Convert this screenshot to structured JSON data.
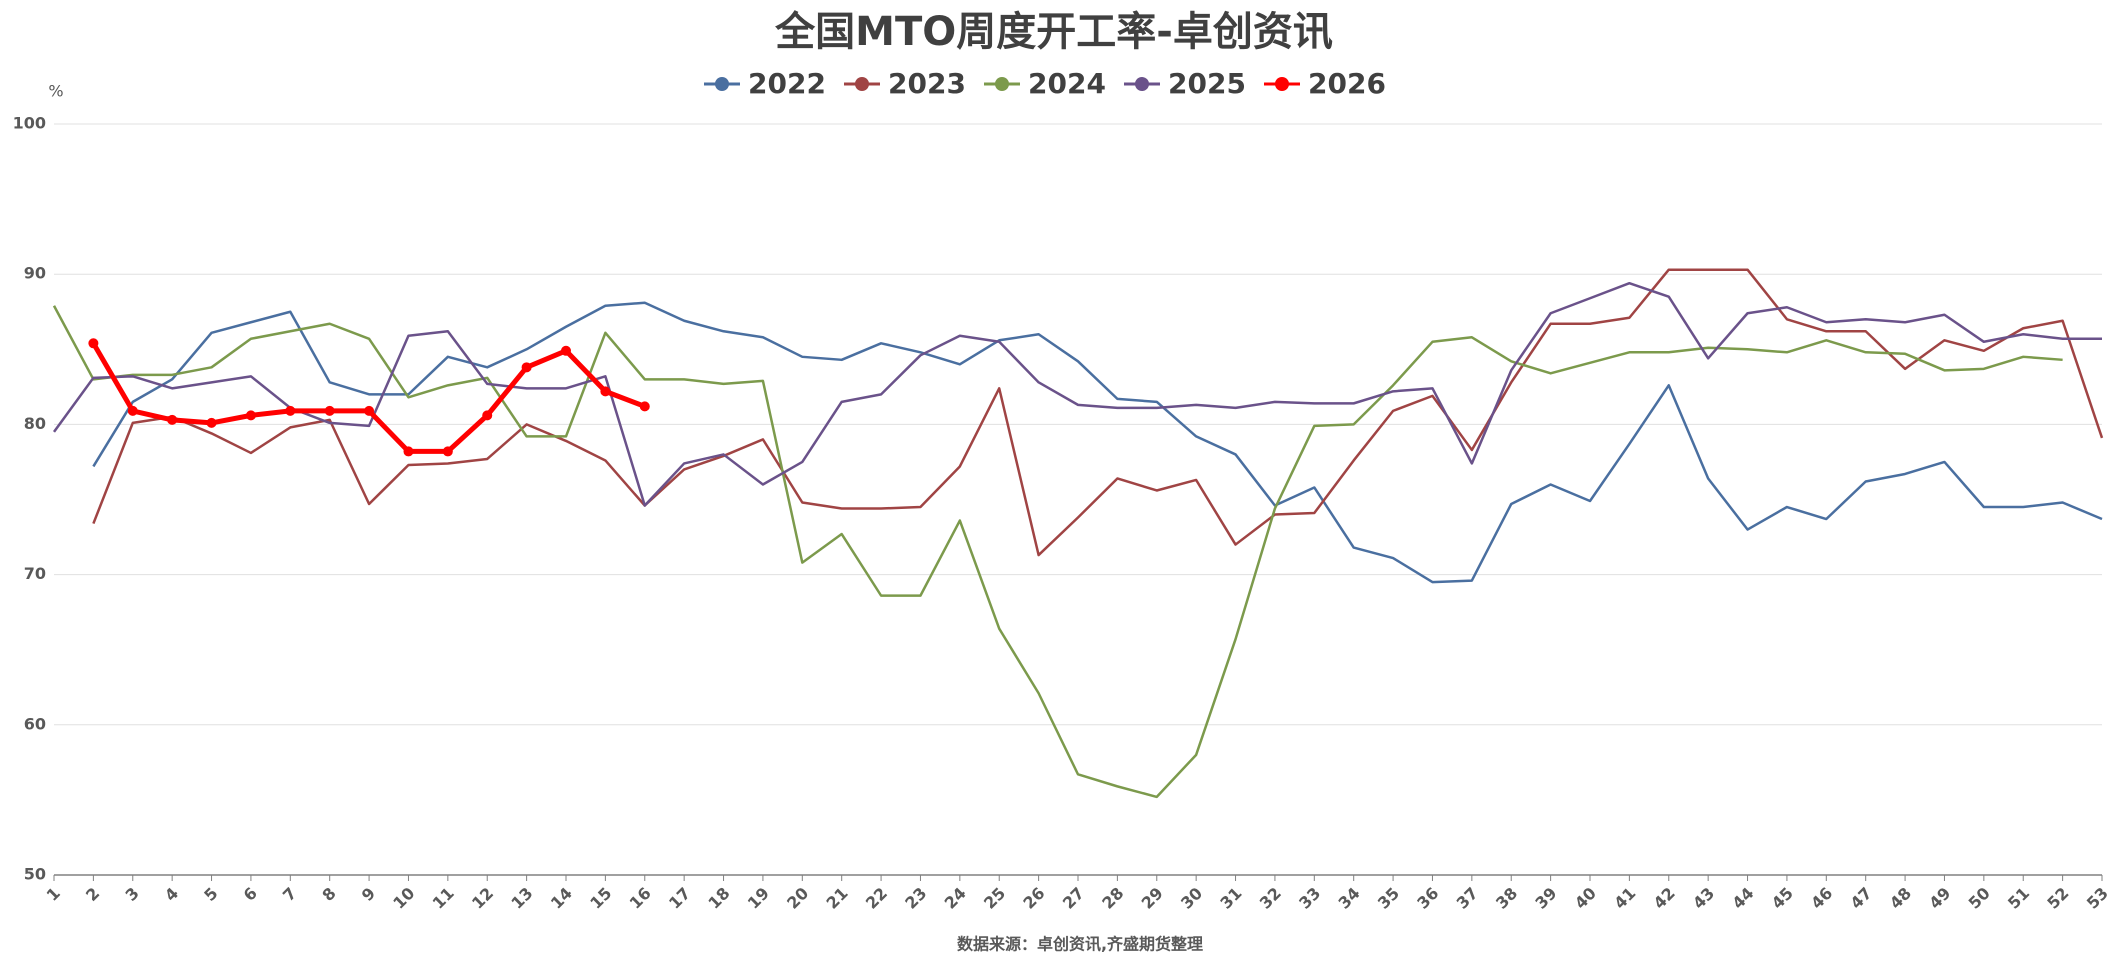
{
  "chart_data": {
    "type": "line",
    "title": "全国MTO周度开工率-卓创资讯",
    "y_unit": "%",
    "source": "数据来源：卓创资讯,齐盛期货整理",
    "categories": [
      "1",
      "2",
      "3",
      "4",
      "5",
      "6",
      "7",
      "8",
      "9",
      "10",
      "11",
      "12",
      "13",
      "14",
      "15",
      "16",
      "17",
      "18",
      "19",
      "20",
      "21",
      "22",
      "23",
      "24",
      "25",
      "26",
      "27",
      "28",
      "29",
      "30",
      "31",
      "32",
      "33",
      "34",
      "35",
      "36",
      "37",
      "38",
      "39",
      "40",
      "41",
      "42",
      "43",
      "44",
      "45",
      "46",
      "47",
      "48",
      "49",
      "50",
      "51",
      "52",
      "53"
    ],
    "ylim": [
      50,
      100
    ],
    "yticks": [
      50,
      60,
      70,
      80,
      90,
      100
    ],
    "grid": true,
    "legend": "top",
    "series": [
      {
        "name": "2022",
        "color": "#4a6fa0",
        "values": [
          null,
          77.2,
          81.5,
          83,
          86.1,
          86.8,
          87.5,
          82.8,
          82,
          82,
          84.5,
          83.8,
          85,
          86.5,
          87.9,
          88.1,
          86.9,
          86.2,
          85.8,
          84.5,
          84.3,
          85.4,
          84.8,
          84,
          85.6,
          86,
          84.2,
          81.7,
          81.5,
          79.2,
          78,
          74.6,
          75.8,
          71.8,
          71.1,
          69.5,
          69.6,
          74.7,
          76,
          74.9,
          78.7,
          82.6,
          76.4,
          73,
          74.5,
          73.7,
          76.2,
          76.7,
          77.5,
          74.5,
          74.5,
          74.8,
          73.7
        ]
      },
      {
        "name": "2023",
        "color": "#a04444",
        "values": [
          null,
          73.4,
          80.1,
          80.5,
          79.4,
          78.1,
          79.8,
          80.3,
          74.7,
          77.3,
          77.4,
          77.7,
          80,
          78.9,
          77.6,
          74.6,
          77,
          77.9,
          79,
          74.8,
          74.4,
          74.4,
          74.5,
          77.2,
          82.4,
          71.3,
          73.8,
          76.4,
          75.6,
          76.3,
          72,
          74,
          74.1,
          77.6,
          80.9,
          81.9,
          78.3,
          82.8,
          86.7,
          86.7,
          87.1,
          90.3,
          90.3,
          90.3,
          87,
          86.2,
          86.2,
          83.7,
          85.6,
          84.9,
          86.4,
          86.9,
          79.1
        ]
      },
      {
        "name": "2024",
        "color": "#7c9a4c",
        "values": [
          87.9,
          83,
          83.3,
          83.3,
          83.8,
          85.7,
          86.2,
          86.7,
          85.7,
          81.8,
          82.6,
          83.1,
          79.2,
          79.2,
          86.1,
          83,
          83,
          82.7,
          82.9,
          70.8,
          72.7,
          68.6,
          68.6,
          73.6,
          66.4,
          62.1,
          56.7,
          55.9,
          55.2,
          58,
          65.7,
          74.4,
          79.9,
          80,
          82.6,
          85.5,
          85.8,
          84.2,
          83.4,
          84.1,
          84.8,
          84.8,
          85.1,
          85,
          84.8,
          85.6,
          84.8,
          84.7,
          83.6,
          83.7,
          84.5,
          84.3,
          null
        ]
      },
      {
        "name": "2025",
        "color": "#6a528a",
        "values": [
          79.5,
          83.1,
          83.2,
          82.4,
          82.8,
          83.2,
          81.1,
          80.1,
          79.9,
          85.9,
          86.2,
          82.7,
          82.4,
          82.4,
          83.2,
          74.6,
          77.4,
          78,
          76,
          77.5,
          81.5,
          82,
          84.6,
          85.9,
          85.5,
          82.8,
          81.3,
          81.1,
          81.1,
          81.3,
          81.1,
          81.5,
          81.4,
          81.4,
          82.2,
          82.4,
          77.4,
          83.6,
          87.4,
          88.4,
          89.4,
          88.5,
          84.4,
          87.4,
          87.8,
          86.8,
          87,
          86.8,
          87.3,
          85.5,
          86,
          85.7,
          85.7
        ]
      },
      {
        "name": "2026",
        "color": "#ff0000",
        "markers": true,
        "values": [
          null,
          85.4,
          80.9,
          80.3,
          80.1,
          80.6,
          80.9,
          80.9,
          80.9,
          78.2,
          78.2,
          80.6,
          83.8,
          84.9,
          82.2,
          81.2,
          null,
          null,
          null,
          null,
          null,
          null,
          null,
          null,
          null,
          null,
          null,
          null,
          null,
          null,
          null,
          null,
          null,
          null,
          null,
          null,
          null,
          null,
          null,
          null,
          null,
          null,
          null,
          null,
          null,
          null,
          null,
          null,
          null,
          null,
          null,
          null,
          null
        ]
      }
    ]
  }
}
